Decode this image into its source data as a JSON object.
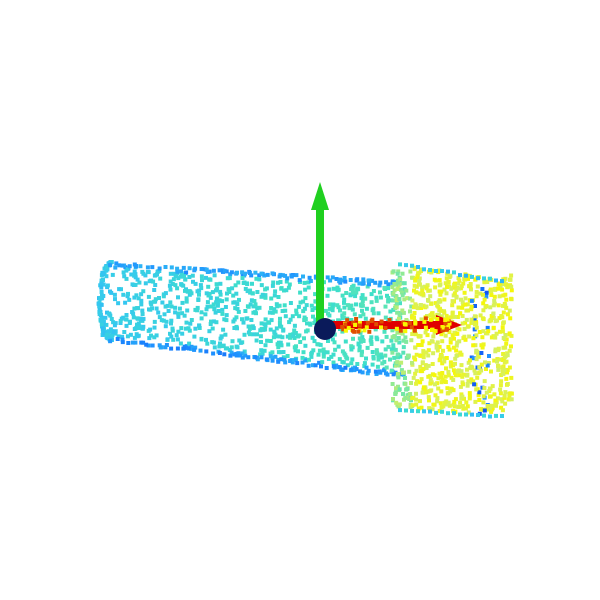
{
  "scene": {
    "description_type": "3d-point-cloud-viewer",
    "background_color": "#ffffff",
    "object": "bolt",
    "colormap": {
      "name": "jet",
      "stops": [
        "#0a3cf0",
        "#1e90ff",
        "#35c8f0",
        "#3fe0c8",
        "#7ee8a0",
        "#d8f060",
        "#f8f800"
      ]
    },
    "axes": {
      "x": {
        "color": "#e00000",
        "label_name": "x-axis"
      },
      "y": {
        "color": "#20d020",
        "label_name": "y-axis"
      },
      "origin_color": "#0a1a5a"
    }
  }
}
